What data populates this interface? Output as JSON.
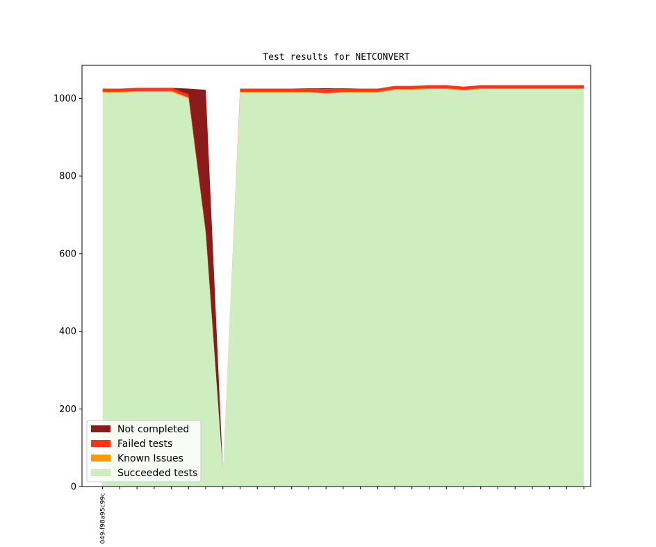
{
  "chart_data": {
    "type": "area",
    "stacked": true,
    "title": "Test results for NETCONVERT",
    "xlabel": "",
    "ylabel": "",
    "ylim": [
      0,
      1085
    ],
    "yticks": [
      0,
      200,
      400,
      600,
      800,
      1000
    ],
    "x_index_range": [
      -1.2,
      28.4
    ],
    "x_tick_count": 29,
    "x_tick_labels": [
      "049-f98a95c99c"
    ],
    "grid": false,
    "legend_position": "lower-left",
    "series": [
      {
        "name": "Succeeded tests",
        "color": "#cfeec0",
        "values": [
          1015,
          1015,
          1017,
          1017,
          1017,
          1000,
          650,
          40,
          1015,
          1015,
          1015,
          1015,
          1015,
          1012,
          1015,
          1015,
          1015,
          1022,
          1022,
          1024,
          1024,
          1020,
          1024,
          1024,
          1024,
          1024,
          1024,
          1024,
          1024
        ]
      },
      {
        "name": "Known Issues",
        "color": "#ff9900",
        "values": [
          2,
          2,
          2,
          2,
          2,
          2,
          2,
          0,
          2,
          2,
          2,
          2,
          2,
          2,
          2,
          2,
          2,
          2,
          2,
          2,
          2,
          2,
          2,
          2,
          2,
          2,
          2,
          2,
          2
        ]
      },
      {
        "name": "Failed tests",
        "color": "#ff3319",
        "values": [
          8,
          8,
          8,
          8,
          8,
          8,
          8,
          0,
          8,
          8,
          8,
          8,
          8,
          10,
          8,
          8,
          8,
          8,
          8,
          8,
          8,
          8,
          8,
          8,
          8,
          8,
          8,
          8,
          8
        ]
      },
      {
        "name": "Not completed",
        "color": "#8b1a1a",
        "values": [
          0,
          0,
          0,
          0,
          0,
          15,
          362,
          0,
          0,
          0,
          0,
          0,
          1,
          2,
          1,
          0,
          0,
          0,
          0,
          0,
          0,
          0,
          0,
          0,
          0,
          0,
          0,
          0,
          0
        ]
      }
    ]
  }
}
